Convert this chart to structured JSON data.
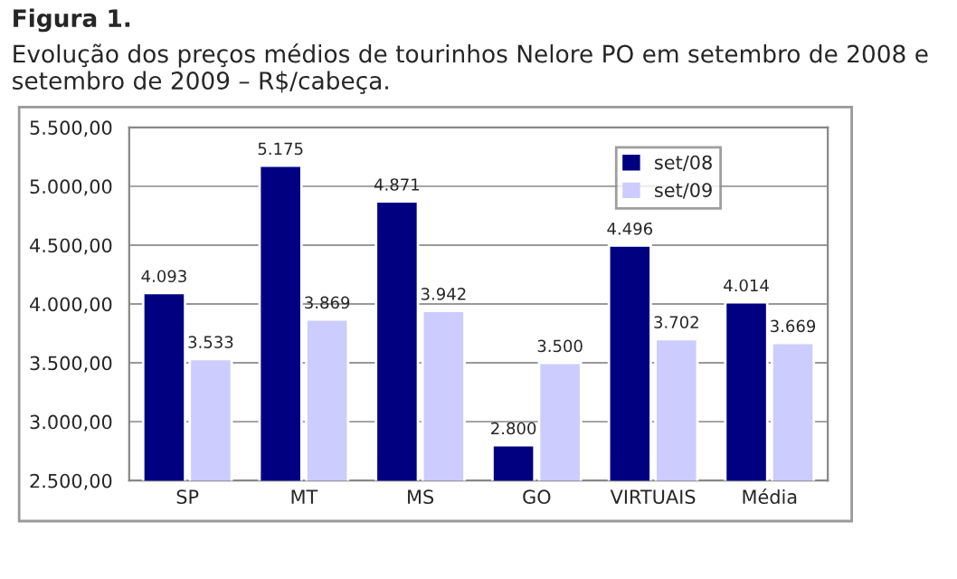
{
  "chart_data": {
    "type": "bar",
    "title": "Figura 1.",
    "subtitle": "Evolução dos preços médios de tourinhos Nelore PO em setembro de 2008 e setembro de 2009 – R$/cabeça.",
    "categories": [
      "SP",
      "MT",
      "MS",
      "GO",
      "VIRTUAIS",
      "Média"
    ],
    "series": [
      {
        "name": "set/08",
        "color": "#000080",
        "values": [
          4093,
          5175,
          4871,
          2800,
          4496,
          4014
        ],
        "value_labels": [
          "4.093",
          "5.175",
          "4.871",
          "2.800",
          "4.496",
          "4.014"
        ]
      },
      {
        "name": "set/09",
        "color": "#ccccff",
        "values": [
          3533,
          3869,
          3942,
          3500,
          3702,
          3669
        ],
        "value_labels": [
          "3.533",
          "3.869",
          "3.942",
          "3.500",
          "3.702",
          "3.669"
        ]
      }
    ],
    "ylim": [
      2500,
      5500
    ],
    "yticks": [
      {
        "value": 2500,
        "label": "2.500,00"
      },
      {
        "value": 3000,
        "label": "3.000,00"
      },
      {
        "value": 3500,
        "label": "3.500,00"
      },
      {
        "value": 4000,
        "label": "4.000,00"
      },
      {
        "value": 4500,
        "label": "4.500,00"
      },
      {
        "value": 5000,
        "label": "5.000,00"
      },
      {
        "value": 5500,
        "label": "5.500,00"
      }
    ],
    "grid": "y",
    "legend": "top right"
  }
}
